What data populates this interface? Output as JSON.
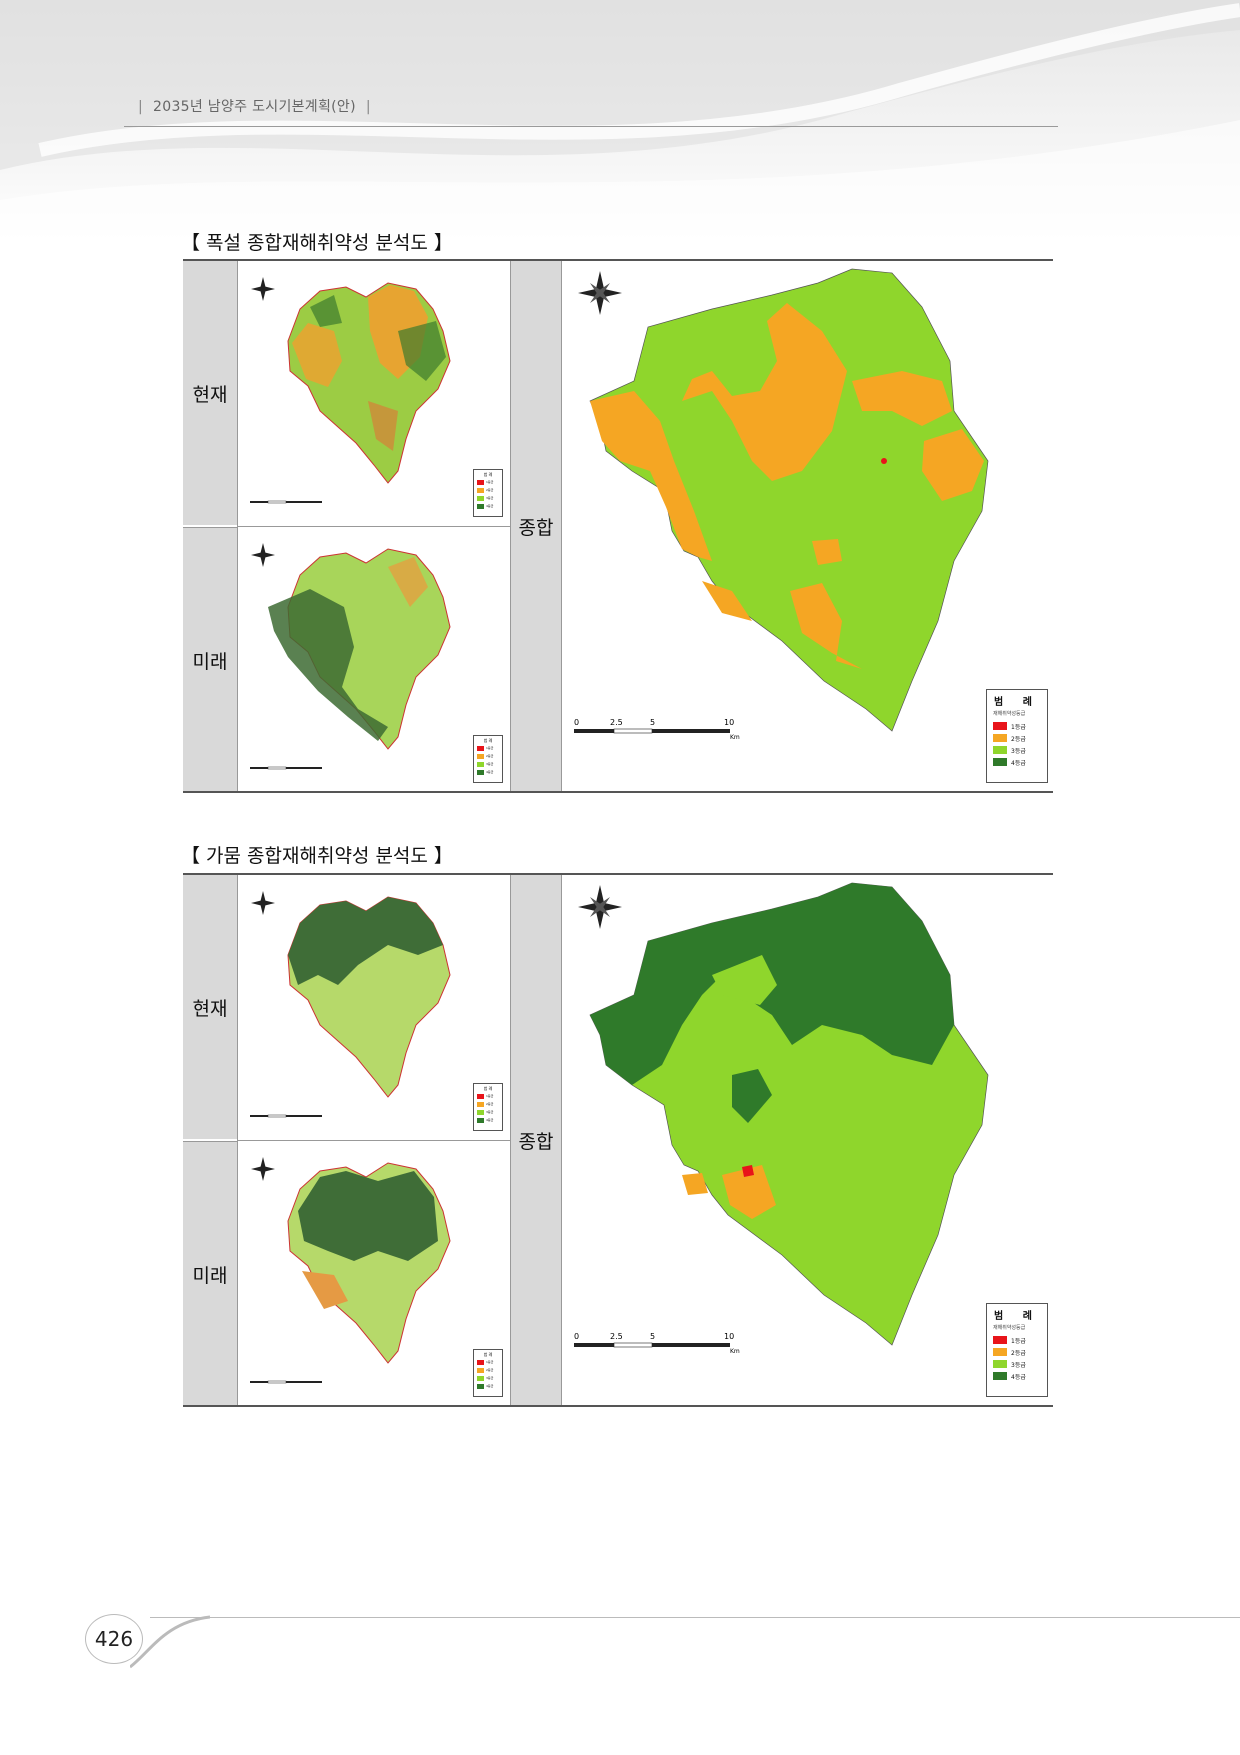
{
  "header": {
    "running_title": "2035년 남양주 도시기본계획(안)",
    "bar_left": "|",
    "bar_right": "|"
  },
  "sections": [
    {
      "title": "【 폭설 종합재해취약성 분석도 】",
      "row_label_now": "현재",
      "row_label_future": "미래",
      "summary_label": "종합",
      "legend": {
        "title": "범 례",
        "subtitle": "재해취약성등급",
        "items": [
          {
            "label": "1등급",
            "color": "#e8141a"
          },
          {
            "label": "2등급",
            "color": "#f5a623"
          },
          {
            "label": "3등급",
            "color": "#8fd62c"
          },
          {
            "label": "4등급",
            "color": "#2f7a2a"
          }
        ]
      },
      "scale": {
        "ticks": [
          "0",
          "2.5",
          "5",
          "10"
        ],
        "unit": "Km"
      }
    },
    {
      "title": "【 가뭄 종합재해취약성 분석도 】",
      "row_label_now": "현재",
      "row_label_future": "미래",
      "summary_label": "종합",
      "legend": {
        "title": "범 례",
        "subtitle": "재해취약성등급",
        "items": [
          {
            "label": "1등급",
            "color": "#e8141a"
          },
          {
            "label": "2등급",
            "color": "#f5a623"
          },
          {
            "label": "3등급",
            "color": "#8fd62c"
          },
          {
            "label": "4등급",
            "color": "#2f7a2a"
          }
        ]
      },
      "scale": {
        "ticks": [
          "0",
          "2.5",
          "5",
          "10"
        ],
        "unit": "Km"
      }
    }
  ],
  "page_number": "426"
}
